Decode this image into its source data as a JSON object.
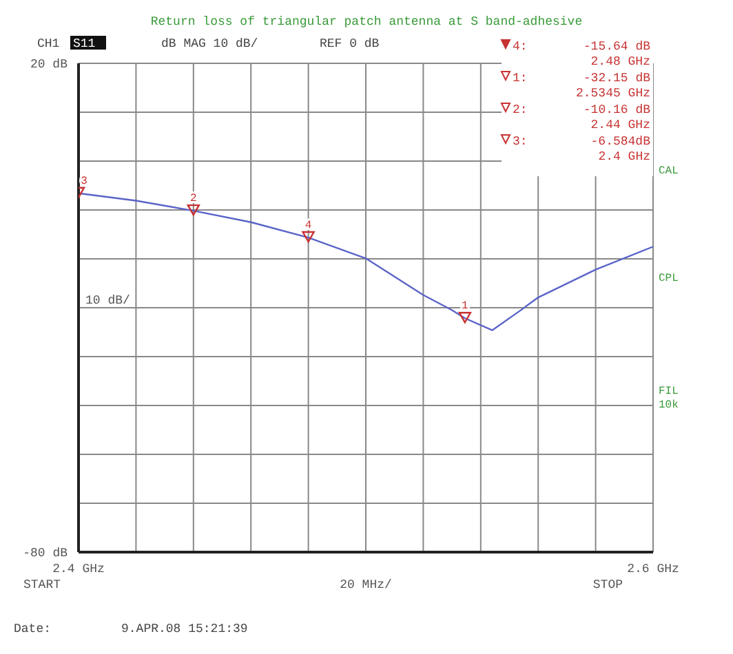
{
  "chart_data": {
    "type": "line",
    "title": "Return loss of triangular patch antenna at S band-adhesive",
    "xlim": [
      2.4,
      2.6
    ],
    "xticks": [
      {
        "value": 2.4,
        "label": "2.4 GHz"
      },
      {
        "value": 2.42,
        "label": null
      },
      {
        "value": 2.44,
        "label": null
      },
      {
        "value": 2.46,
        "label": null
      },
      {
        "value": 2.48,
        "label": null
      },
      {
        "value": 2.5,
        "label": null
      },
      {
        "value": 2.52,
        "label": null
      },
      {
        "value": 2.54,
        "label": null
      },
      {
        "value": 2.56,
        "label": null
      },
      {
        "value": 2.58,
        "label": null
      },
      {
        "value": 2.6,
        "label": "2.6 GHz"
      }
    ],
    "ylim": [
      -80,
      20
    ],
    "yticks": [
      {
        "value": 20,
        "label": "20 dB"
      },
      {
        "value": 10,
        "label": null
      },
      {
        "value": 0,
        "label": null
      },
      {
        "value": -10,
        "label": null
      },
      {
        "value": -20,
        "label": null
      },
      {
        "value": -30,
        "label": null
      },
      {
        "value": -40,
        "label": null
      },
      {
        "value": -50,
        "label": null
      },
      {
        "value": -60,
        "label": null
      },
      {
        "value": -70,
        "label": null
      },
      {
        "value": -80,
        "label": "-80 dB"
      }
    ],
    "grid": true,
    "series": [
      {
        "color": "#5a64c8",
        "x": [
          2.4,
          2.42,
          2.44,
          2.46,
          2.48,
          2.5,
          2.52,
          2.53,
          2.5345,
          2.544,
          2.553,
          2.56,
          2.58,
          2.6
        ],
        "values": [
          -6.584,
          -8.1,
          -10.16,
          -12.5,
          -15.64,
          -19.9,
          -27.4,
          -30.5,
          -32.15,
          -34.6,
          -30.9,
          -27.9,
          -22.2,
          -17.5
        ]
      },
      {
        "type": "scatter",
        "color": "#c83232",
        "marker": "triangle",
        "x": [
          2.5345,
          2.44,
          2.4,
          2.48
        ],
        "values": [
          -32.15,
          -10.16,
          -6.584,
          -15.64
        ]
      }
    ],
    "annotations": [
      "CH1",
      "S11",
      "dB  MAG 10 dB/",
      "REF 0 dB",
      "4:",
      "-15.64 dB",
      "2.48 GHz",
      "1:",
      "-32.15 dB",
      "2.5345 GHz",
      "2:",
      "-10.16 dB",
      "2.44 GHz",
      "3:",
      "-6.584dB",
      "2.4 GHz",
      "Date:",
      "9.APR.08  15:21:39",
      "CAL",
      "CPL",
      "FIL",
      "10k",
      "10 dB/",
      "START",
      "20 MHz/",
      "STOP",
      {
        "text": "1",
        "x": 2.5345,
        "y": -32.15
      },
      {
        "text": "2",
        "x": 2.44,
        "y": -10.16
      },
      {
        "text": "3",
        "x": 2.4,
        "y": -6.584
      },
      {
        "text": "4",
        "x": 2.48,
        "y": -15.64
      }
    ]
  }
}
